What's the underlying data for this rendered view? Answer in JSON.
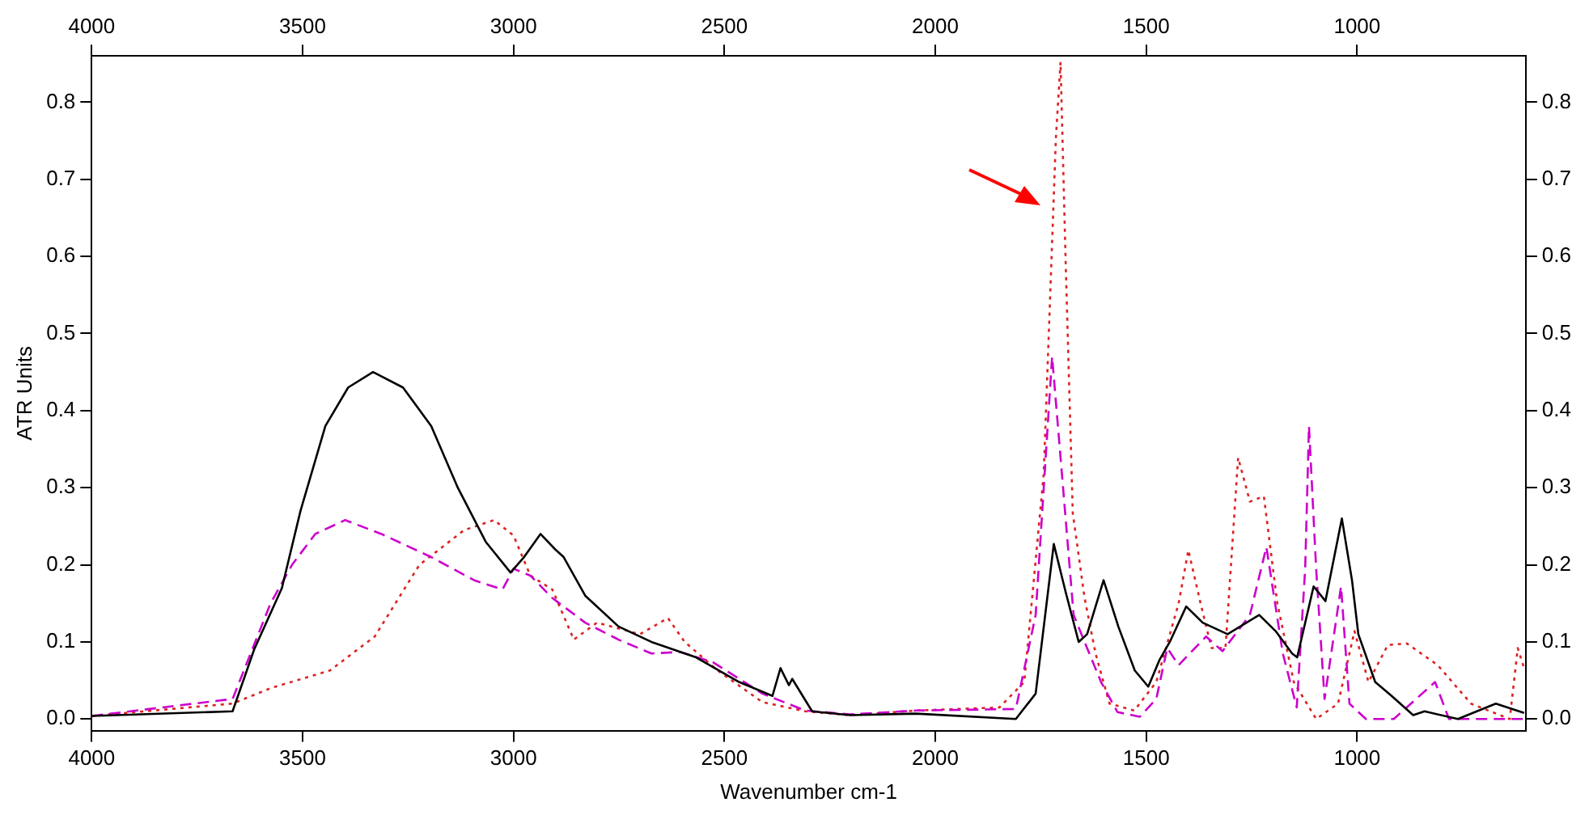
{
  "chart_data": {
    "type": "line",
    "xlabel": "Wavenumber cm-1",
    "ylabel": "ATR Units",
    "xlim": [
      4000,
      600
    ],
    "xticks": [
      4000,
      3500,
      3000,
      2500,
      2000,
      1500,
      1000
    ],
    "x2lim": [
      4000,
      600
    ],
    "x2ticks": [
      4000,
      3500,
      3000,
      2500,
      2000,
      1500,
      1000
    ],
    "ylim": [
      -0.015,
      0.86
    ],
    "yticks": [
      {
        "value": 0,
        "label": "0.0"
      },
      0.1,
      0.2,
      0.3,
      0.4,
      0.5,
      0.6,
      0.7,
      0.8
    ],
    "y2lim": [
      -0.015,
      0.86
    ],
    "y2ticks": [
      {
        "value": 0,
        "label": "0.0"
      },
      0.1,
      0.2,
      0.3,
      0.4,
      0.5,
      0.6,
      0.7,
      0.8
    ],
    "grid": false,
    "series": [
      {
        "color": "#000000",
        "line_style": "solid",
        "x": [
          4000,
          3666,
          3615,
          3549,
          3505,
          3446,
          3392,
          3333,
          3262,
          3195,
          3132,
          3066,
          3007,
          2975,
          2936,
          2901,
          2881,
          2830,
          2751,
          2673,
          2567,
          2465,
          2386,
          2367,
          2347,
          2339,
          2292,
          2202,
          2045,
          1809,
          1762,
          1719,
          1691,
          1660,
          1640,
          1601,
          1566,
          1527,
          1495,
          1468,
          1444,
          1405,
          1366,
          1307,
          1232,
          1193,
          1154,
          1142,
          1103,
          1075,
          1036,
          1012,
          997,
          957,
          918,
          867,
          840,
          761,
          671,
          604
        ],
        "values": [
          0.004,
          0.01,
          0.09,
          0.17,
          0.27,
          0.38,
          0.43,
          0.45,
          0.43,
          0.38,
          0.3,
          0.23,
          0.19,
          0.21,
          0.24,
          0.22,
          0.21,
          0.16,
          0.12,
          0.1,
          0.08,
          0.048,
          0.03,
          0.066,
          0.044,
          0.052,
          0.01,
          0.005,
          0.007,
          0,
          0.033,
          0.227,
          0.165,
          0.1,
          0.11,
          0.18,
          0.12,
          0.063,
          0.042,
          0.077,
          0.1,
          0.146,
          0.125,
          0.11,
          0.135,
          0.114,
          0.085,
          0.08,
          0.172,
          0.153,
          0.26,
          0.18,
          0.11,
          0.048,
          0.03,
          0.005,
          0.01,
          0,
          0.02,
          0.008
        ]
      },
      {
        "color": "#cc00cc",
        "line_style": "dashed",
        "x": [
          4000,
          3666,
          3576,
          3525,
          3470,
          3399,
          3313,
          3195,
          3093,
          3026,
          3000,
          2960,
          2908,
          2830,
          2751,
          2673,
          2606,
          2528,
          2410,
          2308,
          2202,
          2045,
          1809,
          1762,
          1723,
          1697,
          1672,
          1646,
          1607,
          1568,
          1515,
          1476,
          1450,
          1423,
          1358,
          1319,
          1254,
          1215,
          1176,
          1143,
          1123,
          1114,
          1097,
          1077,
          1038,
          1018,
          979,
          913,
          815,
          782,
          604
        ],
        "values": [
          0.004,
          0.026,
          0.15,
          0.2,
          0.24,
          0.258,
          0.24,
          0.21,
          0.18,
          0.168,
          0.195,
          0.186,
          0.157,
          0.125,
          0.103,
          0.085,
          0.087,
          0.074,
          0.033,
          0.011,
          0.006,
          0.011,
          0.013,
          0.135,
          0.47,
          0.3,
          0.135,
          0.1,
          0.048,
          0.009,
          0.003,
          0.026,
          0.092,
          0.07,
          0.107,
          0.088,
          0.135,
          0.223,
          0.085,
          0.015,
          0.195,
          0.38,
          0.195,
          0.026,
          0.172,
          0.02,
          0,
          0,
          0.048,
          0,
          0
        ]
      },
      {
        "color": "#dd2222",
        "line_style": "dotted",
        "x": [
          4000,
          3666,
          3576,
          3435,
          3329,
          3223,
          3117,
          3046,
          3000,
          2960,
          2908,
          2857,
          2802,
          2700,
          2634,
          2594,
          2516,
          2410,
          2308,
          2202,
          2045,
          1848,
          1789,
          1743,
          1714,
          1703,
          1691,
          1674,
          1646,
          1620,
          1587,
          1528,
          1476,
          1423,
          1400,
          1371,
          1345,
          1312,
          1282,
          1254,
          1221,
          1189,
          1150,
          1097,
          1045,
          1006,
          973,
          927,
          882,
          809,
          730,
          638,
          619,
          604
        ],
        "values": [
          0.004,
          0.02,
          0.04,
          0.063,
          0.107,
          0.2,
          0.245,
          0.258,
          0.238,
          0.186,
          0.168,
          0.103,
          0.125,
          0.11,
          0.131,
          0.1,
          0.063,
          0.022,
          0.01,
          0.005,
          0.011,
          0.015,
          0.048,
          0.317,
          0.754,
          0.852,
          0.595,
          0.267,
          0.157,
          0.085,
          0.02,
          0.011,
          0.048,
          0.15,
          0.219,
          0.15,
          0.092,
          0.092,
          0.339,
          0.282,
          0.289,
          0.15,
          0.048,
          0,
          0.02,
          0.114,
          0.048,
          0.096,
          0.098,
          0.07,
          0.02,
          0,
          0.092,
          0.066
        ]
      }
    ]
  }
}
